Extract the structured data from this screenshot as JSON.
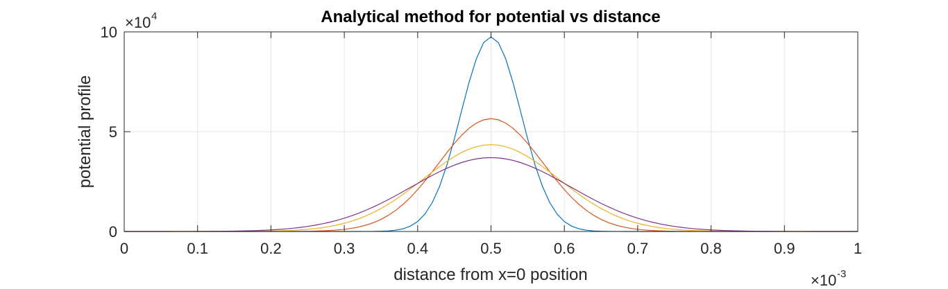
{
  "chart_data": {
    "type": "line",
    "title": "Analytical method for potential vs distance",
    "xlabel": "distance from x=0 position",
    "ylabel": "potential profile",
    "xlim": [
      0,
      0.001
    ],
    "ylim": [
      0,
      100000
    ],
    "grid": true,
    "x_multiplier": {
      "base": "×10",
      "exponent": "-3"
    },
    "y_multiplier": {
      "base": "×10",
      "exponent": "4"
    },
    "x_ticks": [
      0,
      0.0001,
      0.0002,
      0.0003,
      0.0004,
      0.0005,
      0.0006,
      0.0007,
      0.0008,
      0.0009,
      0.001
    ],
    "x_tick_labels": [
      "0",
      "0.1",
      "0.2",
      "0.3",
      "0.4",
      "0.5",
      "0.6",
      "0.7",
      "0.8",
      "0.9",
      "1"
    ],
    "y_ticks": [
      0,
      50000,
      100000
    ],
    "y_tick_labels": [
      "0",
      "5",
      "10"
    ],
    "series": [
      {
        "color": "#0072BD",
        "center": 0.0005,
        "peak": 97500,
        "sigma": 4.1e-05
      },
      {
        "color": "#D95319",
        "center": 0.0005,
        "peak": 56500,
        "sigma": 7.1e-05
      },
      {
        "color": "#EDB120",
        "center": 0.0005,
        "peak": 43500,
        "sigma": 9.2e-05
      },
      {
        "color": "#7E2F8E",
        "center": 0.0005,
        "peak": 37000,
        "sigma": 0.000108
      }
    ],
    "sample_step": 1e-05
  }
}
